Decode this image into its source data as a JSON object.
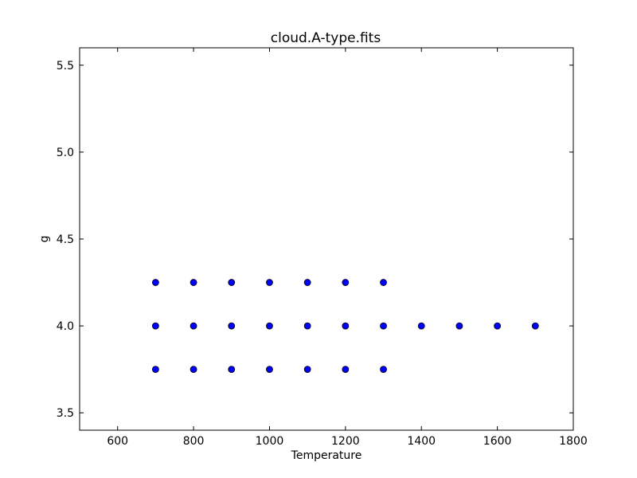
{
  "chart_data": {
    "type": "scatter",
    "title": "cloud.A-type.fits",
    "xlabel": "Temperature",
    "ylabel": "g",
    "xlim": [
      500,
      1800
    ],
    "ylim": [
      3.4,
      5.6
    ],
    "xticks": [
      600,
      800,
      1000,
      1200,
      1400,
      1600,
      1800
    ],
    "xtick_labels": [
      "600",
      "800",
      "1000",
      "1200",
      "1400",
      "1600",
      "1800"
    ],
    "yticks": [
      3.5,
      4.0,
      4.5,
      5.0,
      5.5
    ],
    "ytick_labels": [
      "3.5",
      "4.0",
      "4.5",
      "5.0",
      "5.5"
    ],
    "grid": false,
    "marker_color": "#0000ff",
    "marker_edge_color": "#000000",
    "series": [
      {
        "points": [
          [
            700,
            3.75
          ],
          [
            800,
            3.75
          ],
          [
            900,
            3.75
          ],
          [
            1000,
            3.75
          ],
          [
            1100,
            3.75
          ],
          [
            1200,
            3.75
          ],
          [
            1300,
            3.75
          ],
          [
            700,
            4.0
          ],
          [
            800,
            4.0
          ],
          [
            900,
            4.0
          ],
          [
            1000,
            4.0
          ],
          [
            1100,
            4.0
          ],
          [
            1200,
            4.0
          ],
          [
            1300,
            4.0
          ],
          [
            1400,
            4.0
          ],
          [
            1500,
            4.0
          ],
          [
            1600,
            4.0
          ],
          [
            1700,
            4.0
          ],
          [
            700,
            4.25
          ],
          [
            800,
            4.25
          ],
          [
            900,
            4.25
          ],
          [
            1000,
            4.25
          ],
          [
            1100,
            4.25
          ],
          [
            1200,
            4.25
          ],
          [
            1300,
            4.25
          ]
        ]
      }
    ]
  }
}
